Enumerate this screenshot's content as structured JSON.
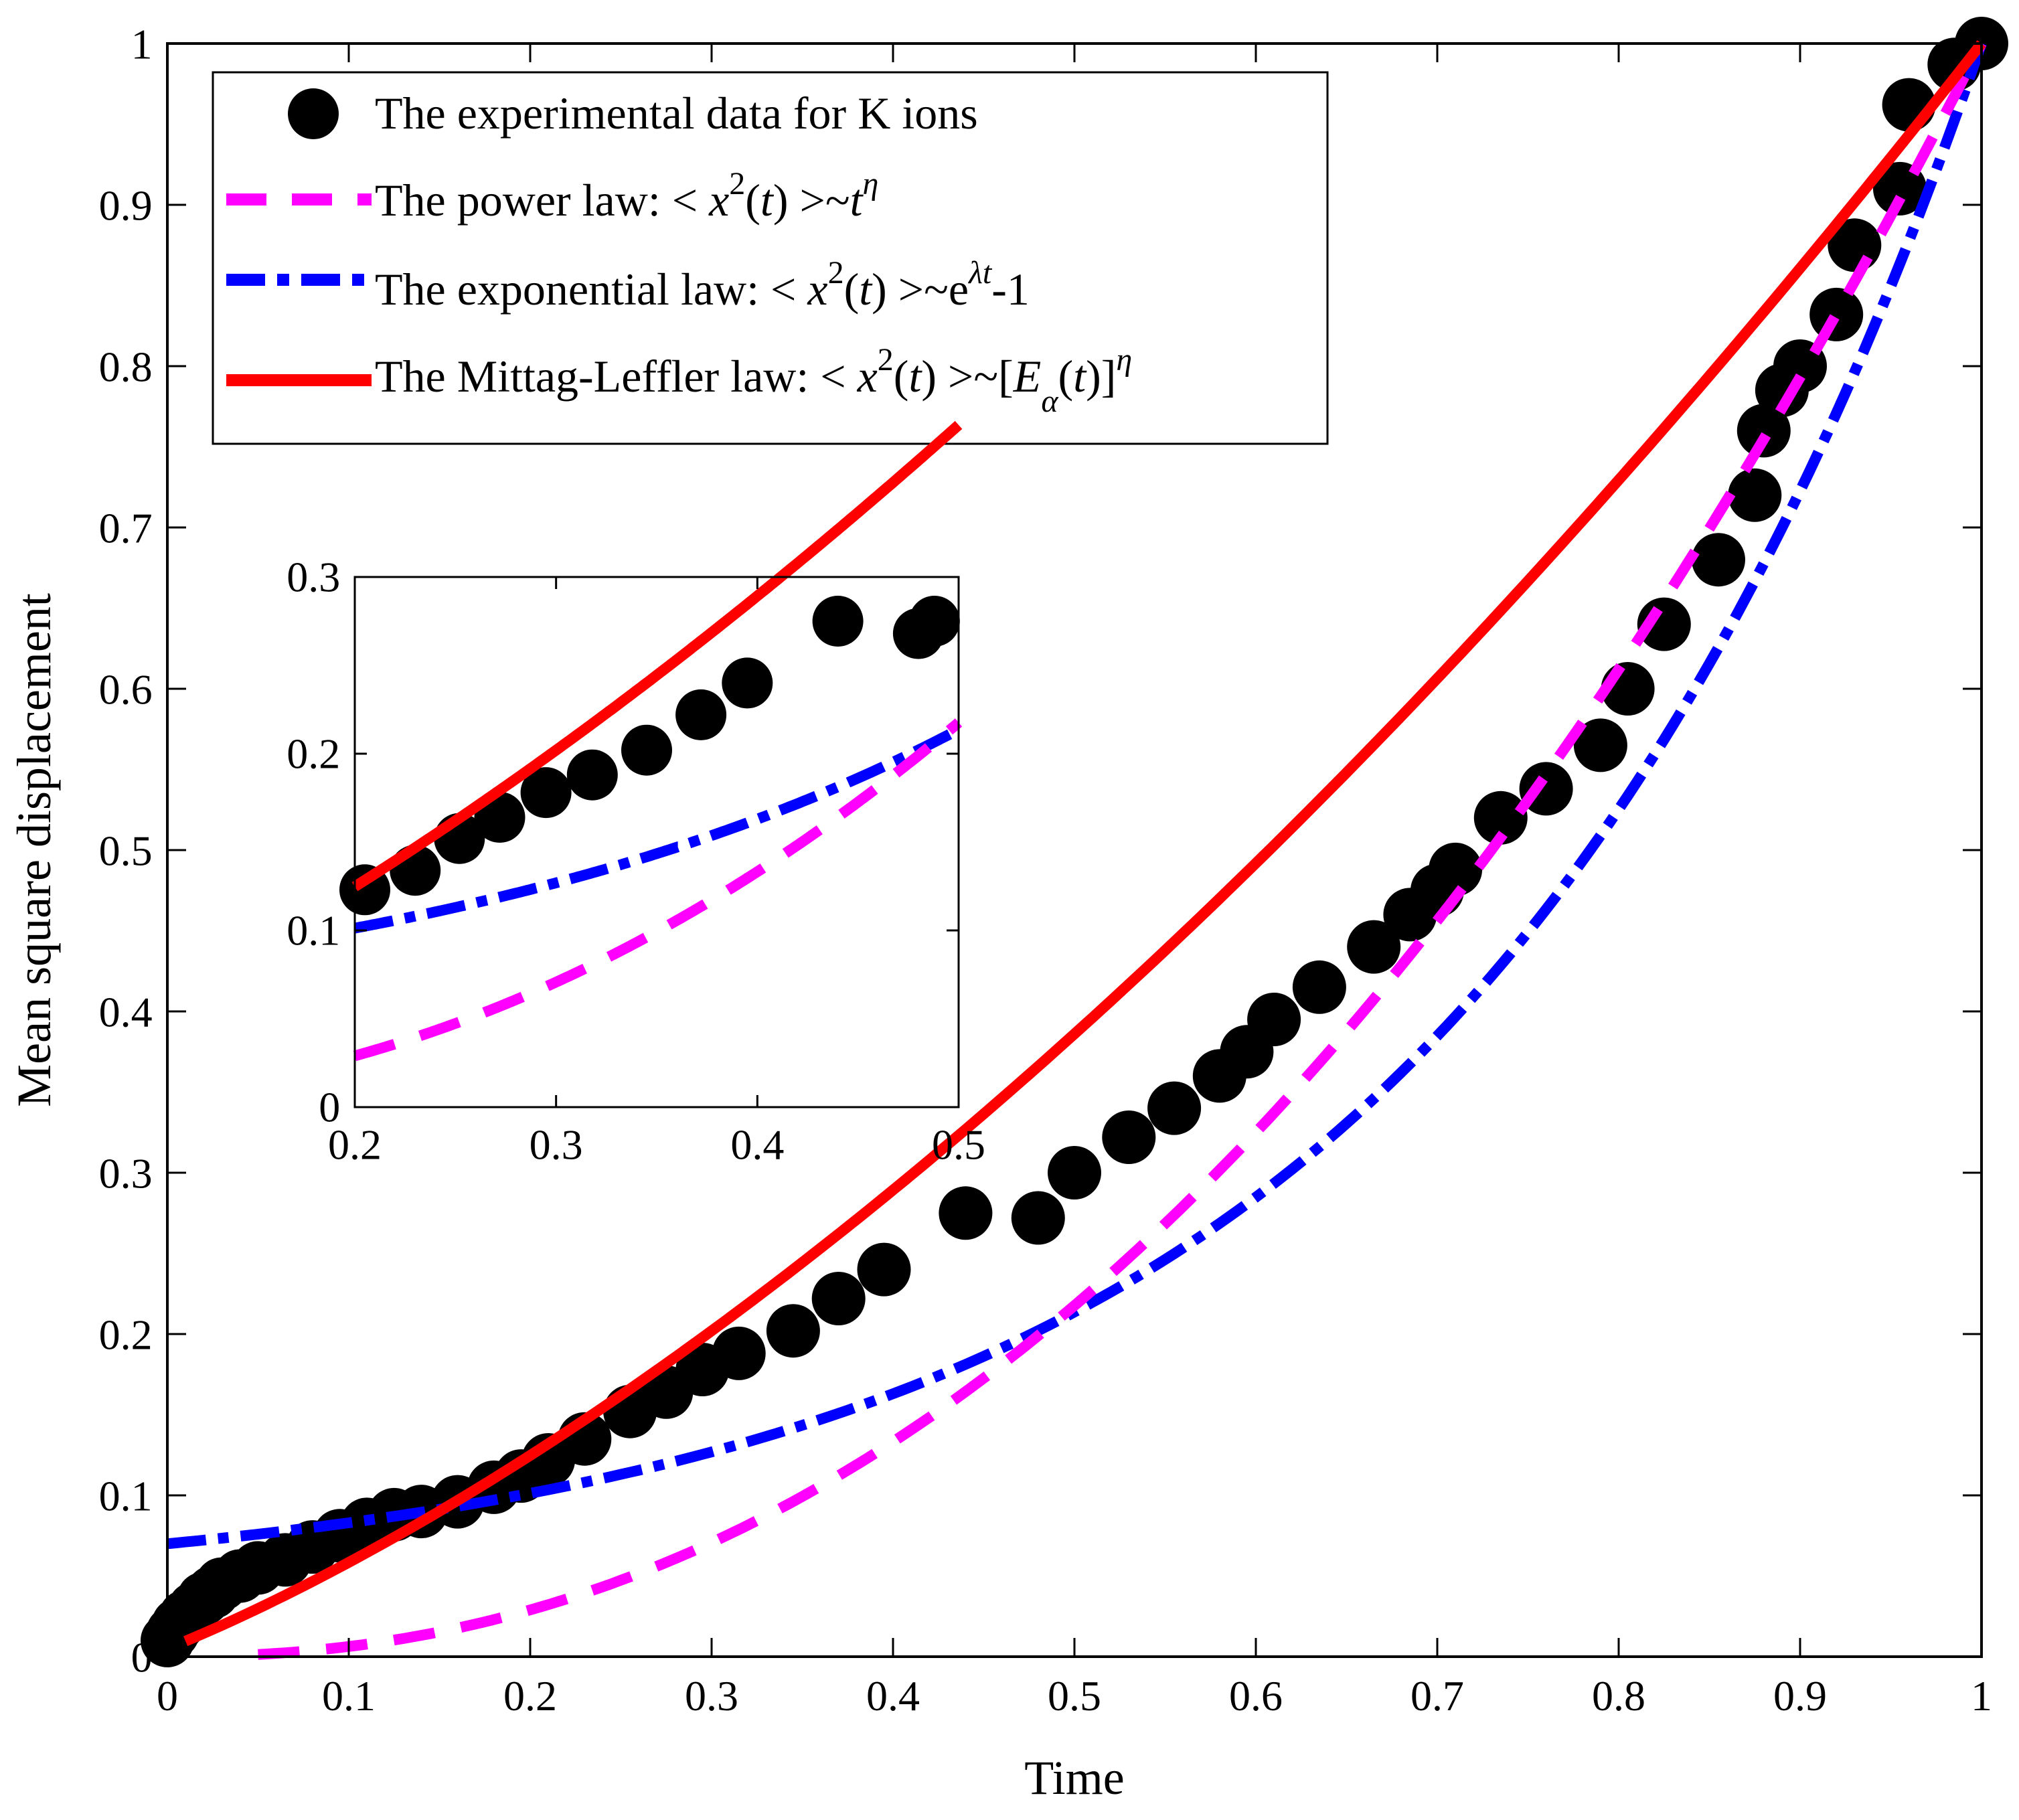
{
  "chart_data": [
    {
      "id": "main",
      "type": "scatter",
      "xlabel": "Time",
      "ylabel": "Mean square displacement",
      "xlim": [
        0,
        1
      ],
      "ylim": [
        0,
        1
      ],
      "xticks": [
        0,
        0.1,
        0.2,
        0.3,
        0.4,
        0.5,
        0.6,
        0.7,
        0.8,
        0.9,
        1
      ],
      "yticks": [
        0,
        0.1,
        0.2,
        0.3,
        0.4,
        0.5,
        0.6,
        0.7,
        0.8,
        0.9,
        1
      ],
      "xtick_labels": [
        "0",
        "0.1",
        "0.2",
        "0.3",
        "0.4",
        "0.5",
        "0.6",
        "0.7",
        "0.8",
        "0.9",
        "1"
      ],
      "ytick_labels": [
        "0",
        "0.1",
        "0.2",
        "0.3",
        "0.4",
        "0.5",
        "0.6",
        "0.7",
        "0.8",
        "0.9",
        "1"
      ],
      "legend_position": "top-left",
      "legend": [
        {
          "series": "experimental",
          "text": "The experimental data for K ions"
        },
        {
          "series": "power",
          "text": "The  power law: < ",
          "math": "x",
          "sup1": "2",
          "mid": "(",
          "math2": "t",
          "tail": ") >~",
          "math3": "t",
          "sup2": "η"
        },
        {
          "series": "exponential",
          "text": "The exponential  law: < ",
          "math": "x",
          "sup1": "2",
          "mid": "(",
          "math2": "t",
          "tail": ") >~e",
          "sup2": "λt",
          "end": "-1"
        },
        {
          "series": "mittag",
          "text": "The Mittag-Leffler law: < ",
          "math": "x",
          "sup1": "2",
          "mid": "(",
          "math2": "t",
          "tail": ") >~[",
          "math3": "E",
          "sub": "α",
          "open": "(",
          "math4": "t",
          "close": ")]",
          "sup2": "η"
        }
      ],
      "series": [
        {
          "name": "experimental",
          "kind": "markers",
          "color": "#000000",
          "x": [
            0.0,
            0.003,
            0.006,
            0.01,
            0.015,
            0.02,
            0.025,
            0.03,
            0.04,
            0.05,
            0.065,
            0.08,
            0.095,
            0.11,
            0.125,
            0.14,
            0.16,
            0.18,
            0.195,
            0.21,
            0.23,
            0.255,
            0.275,
            0.295,
            0.315,
            0.345,
            0.37,
            0.395,
            0.44,
            0.48,
            0.5,
            0.53,
            0.555,
            0.58,
            0.595,
            0.61,
            0.635,
            0.665,
            0.685,
            0.7,
            0.71,
            0.735,
            0.76,
            0.79,
            0.805,
            0.825,
            0.855,
            0.875,
            0.88,
            0.89,
            0.9,
            0.92,
            0.93,
            0.955,
            0.96,
            0.985,
            1.0
          ],
          "y": [
            0.01,
            0.015,
            0.02,
            0.025,
            0.03,
            0.036,
            0.04,
            0.045,
            0.05,
            0.055,
            0.06,
            0.068,
            0.075,
            0.082,
            0.088,
            0.09,
            0.096,
            0.105,
            0.112,
            0.122,
            0.135,
            0.152,
            0.164,
            0.178,
            0.188,
            0.202,
            0.222,
            0.24,
            0.275,
            0.272,
            0.3,
            0.322,
            0.34,
            0.36,
            0.375,
            0.395,
            0.415,
            0.44,
            0.46,
            0.475,
            0.488,
            0.52,
            0.538,
            0.565,
            0.6,
            0.64,
            0.68,
            0.72,
            0.76,
            0.785,
            0.8,
            0.832,
            0.875,
            0.91,
            0.962,
            0.987,
            1.0
          ]
        },
        {
          "name": "power",
          "kind": "dashed",
          "color": "#ff00ff",
          "eta": 2.2
        },
        {
          "name": "exponential",
          "kind": "dashdot",
          "color": "#0000ff",
          "y0": 0.07,
          "ymax": 1.0,
          "lambda": 3.4
        },
        {
          "name": "mittag",
          "kind": "solid",
          "color": "#ff0000",
          "y0": 0.005,
          "ymax": 1.0,
          "eta": 1.6
        }
      ]
    },
    {
      "id": "inset",
      "type": "scatter",
      "xlabel": "",
      "ylabel": "",
      "xlim": [
        0.2,
        0.5
      ],
      "ylim": [
        0,
        0.3
      ],
      "xticks": [
        0.2,
        0.3,
        0.4,
        0.5
      ],
      "yticks": [
        0,
        0.1,
        0.2,
        0.3
      ],
      "xtick_labels": [
        "0.2",
        "0.3",
        "0.4",
        "0.5"
      ],
      "ytick_labels": [
        "0",
        "0.1",
        "0.2",
        "0.3"
      ],
      "series": [
        {
          "name": "experimental",
          "kind": "markers",
          "color": "#000000",
          "x": [
            0.205,
            0.23,
            0.252,
            0.272,
            0.295,
            0.318,
            0.345,
            0.372,
            0.395,
            0.44,
            0.48,
            0.488
          ],
          "y": [
            0.123,
            0.134,
            0.152,
            0.164,
            0.178,
            0.188,
            0.202,
            0.222,
            0.24,
            0.275,
            0.268,
            0.275
          ]
        },
        {
          "name": "power",
          "kind": "dashed",
          "color": "#ff00ff"
        },
        {
          "name": "exponential",
          "kind": "dashdot",
          "color": "#0000ff"
        },
        {
          "name": "mittag",
          "kind": "solid",
          "color": "#ff0000"
        }
      ]
    }
  ]
}
